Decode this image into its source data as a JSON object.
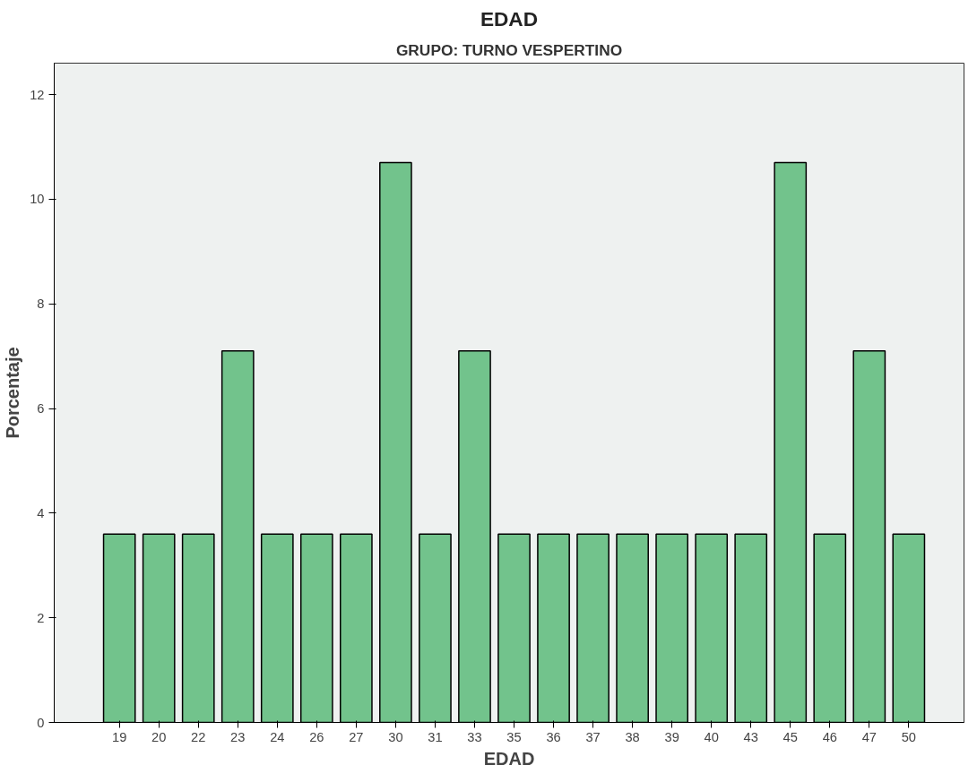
{
  "chart_data": {
    "type": "bar",
    "title": "EDAD",
    "subtitle": "GRUPO: TURNO VESPERTINO",
    "xlabel": "EDAD",
    "ylabel": "Porcentaje",
    "categories": [
      "19",
      "20",
      "22",
      "23",
      "24",
      "26",
      "27",
      "30",
      "31",
      "33",
      "35",
      "36",
      "37",
      "38",
      "39",
      "40",
      "43",
      "45",
      "46",
      "47",
      "50"
    ],
    "values": [
      3.6,
      3.6,
      3.6,
      7.1,
      3.6,
      3.6,
      3.6,
      10.7,
      3.6,
      7.1,
      3.6,
      3.6,
      3.6,
      3.6,
      3.6,
      3.6,
      3.6,
      10.7,
      3.6,
      7.1,
      3.6
    ],
    "color": "#72c38c",
    "ylim": [
      0,
      12.6
    ],
    "yticks": [
      0,
      2,
      4,
      6,
      8,
      10,
      12
    ],
    "grid": false
  }
}
